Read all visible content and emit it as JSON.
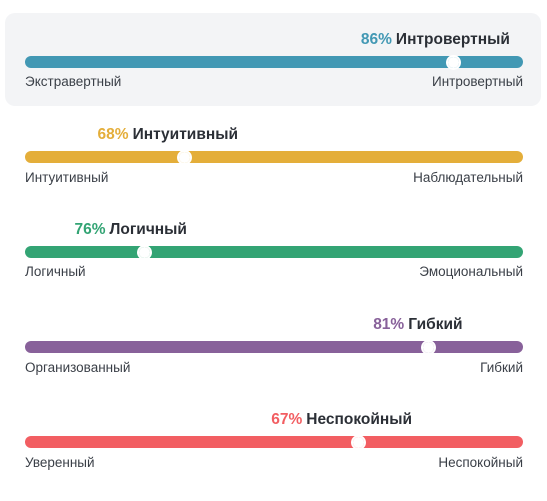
{
  "traits": [
    {
      "percent_text": "86%",
      "value": 86,
      "trait_label": "Интровертный",
      "left_label": "Экстравертный",
      "right_label": "Интровертный",
      "color": "#4298b4"
    },
    {
      "percent_text": "68%",
      "value": 32,
      "trait_label": "Интуитивный",
      "left_label": "Интуитивный",
      "right_label": "Наблюдательный",
      "color": "#e4ae3a"
    },
    {
      "percent_text": "76%",
      "value": 24,
      "trait_label": "Логичный",
      "left_label": "Логичный",
      "right_label": "Эмоциональный",
      "color": "#33a474"
    },
    {
      "percent_text": "81%",
      "value": 81,
      "trait_label": "Гибкий",
      "left_label": "Организованный",
      "right_label": "Гибкий",
      "color": "#88619a"
    },
    {
      "percent_text": "67%",
      "value": 67,
      "trait_label": "Неспокойный",
      "left_label": "Уверенный",
      "right_label": "Неспокойный",
      "color": "#f25e62"
    }
  ]
}
